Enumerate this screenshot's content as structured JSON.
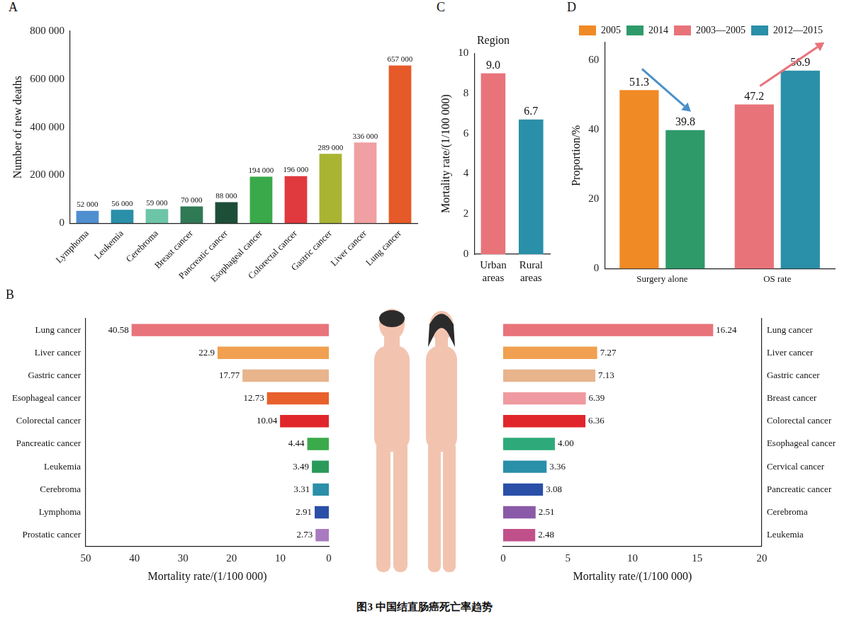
{
  "chart_data": [
    {
      "panel": "A",
      "type": "bar",
      "y_label": "Number of new deaths",
      "categories": [
        "Lymphoma",
        "Leukemia",
        "Cerebroma",
        "Breast cancer",
        "Pancreatic cancer",
        "Esophageal cancer",
        "Colorectal cancer",
        "Gastric cancer",
        "Liver cancer",
        "Lung cancer"
      ],
      "values": [
        52000,
        56000,
        59000,
        70000,
        88000,
        194000,
        196000,
        289000,
        336000,
        657000
      ],
      "value_labels": [
        "52 000",
        "56 000",
        "59 000",
        "70 000",
        "88 000",
        "194 000",
        "196 000",
        "289 000",
        "336 000",
        "657 000"
      ],
      "colors": [
        "#4f8fd0",
        "#2a8fa8",
        "#6cc5a6",
        "#2f7a55",
        "#1d4f38",
        "#3aa94a",
        "#e0393e",
        "#a9b532",
        "#f0a0a2",
        "#e65a2a"
      ],
      "ylim": [
        0,
        800000
      ],
      "yticks": [
        0,
        {
          "value": 200000,
          "label": "200 000"
        },
        {
          "value": 400000,
          "label": "400 000"
        },
        {
          "value": 600000,
          "label": "600 000"
        },
        {
          "value": 800000,
          "label": "800 000"
        }
      ],
      "grid": false,
      "data_labels": true
    },
    {
      "panel": "B",
      "type": "bar",
      "orientation": "horizontal",
      "x_label": "Mortality rate/(1/100 000)",
      "categories": [
        "Lung cancer",
        "Liver cancer",
        "Gastric cancer",
        "Esophageal cancer",
        "Colorectal cancer",
        "Pancreatic cancer",
        "Leukemia",
        "Cerebroma",
        "Lymphoma",
        "Prostatic cancer"
      ],
      "values": [
        40.58,
        22.9,
        17.77,
        12.73,
        10.04,
        4.44,
        3.49,
        3.31,
        2.91,
        2.73
      ],
      "colors": [
        "#e8737a",
        "#f0a050",
        "#e8b48c",
        "#e8602c",
        "#e0262b",
        "#3aaa4a",
        "#2a9a5a",
        "#2a8fa8",
        "#2a4fa8",
        "#a87ac0"
      ],
      "xlim": [
        0,
        50
      ],
      "xticks": [
        0,
        10,
        20,
        30,
        40,
        50
      ],
      "grid": false,
      "data_labels": true
    },
    {
      "type": "bar",
      "orientation": "horizontal",
      "x_label": "Mortality rate/(1/100 000)",
      "categories": [
        "Lung cancer",
        "Liver cancer",
        "Gastric cancer",
        "Breast cancer",
        "Colorectal cancer",
        "Esophageal cancer",
        "Cervical cancer",
        "Pancreatic cancer",
        "Cerebroma",
        "Leukemia"
      ],
      "values": [
        16.24,
        7.27,
        7.13,
        6.39,
        6.36,
        4.0,
        3.36,
        3.08,
        2.51,
        2.48
      ],
      "value_labels": [
        "16.24",
        "7.27",
        "7.13",
        "6.39",
        "6.36",
        "4.00",
        "3.36",
        "3.08",
        "2.51",
        "2.48"
      ],
      "colors": [
        "#e8737a",
        "#f0a050",
        "#e8b48c",
        "#ef9aa0",
        "#e0262b",
        "#2eaa7a",
        "#2a8fa8",
        "#2a4fa8",
        "#8a5aa8",
        "#c0508a"
      ],
      "xlim": [
        0,
        20
      ],
      "xticks": [
        0,
        5,
        10,
        15,
        20
      ],
      "grid": false,
      "data_labels": true
    },
    {
      "panel": "C",
      "type": "bar",
      "title": "Region",
      "y_label": "Mortality rate/(1/100 000)",
      "categories": [
        "Urban areas",
        "Rural areas"
      ],
      "values": [
        9.0,
        6.7
      ],
      "value_labels": [
        "9.0",
        "6.7"
      ],
      "colors": [
        "#e8747a",
        "#2a8fa8"
      ],
      "ylim": [
        0,
        10
      ],
      "yticks": [
        0,
        2,
        4,
        6,
        8,
        10
      ],
      "grid": false,
      "data_labels": true
    },
    {
      "panel": "D",
      "type": "bar",
      "y_label": "Proportion/%",
      "categories": [
        "Surgery alone",
        "OS rate"
      ],
      "series": [
        {
          "name": "2005",
          "color": "#f08a24",
          "values": [
            51.3,
            null
          ]
        },
        {
          "name": "2014",
          "color": "#2e9a6a",
          "values": [
            39.8,
            null
          ]
        },
        {
          "name": "2003—2005",
          "color": "#e8747a",
          "values": [
            null,
            47.2
          ]
        },
        {
          "name": "2012—2015",
          "color": "#2a8fa8",
          "values": [
            null,
            56.9
          ]
        }
      ],
      "ylim": [
        0,
        65
      ],
      "yticks": [
        0,
        20,
        40,
        60
      ],
      "legend": "top",
      "grid": false,
      "data_labels": true
    }
  ],
  "caption": "图3  中国结直肠癌死亡率趋势"
}
